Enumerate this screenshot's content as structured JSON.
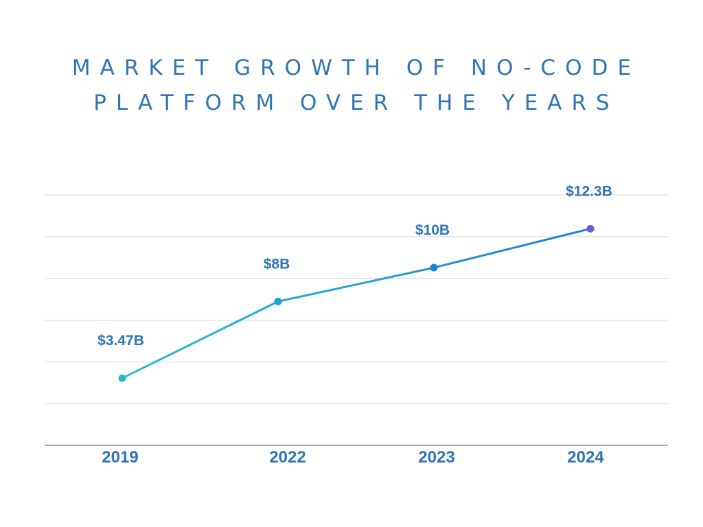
{
  "chart_data": {
    "type": "line",
    "title_lines": [
      "MARKET GROWTH OF NO-CODE",
      "PLATFORM OVER THE YEARS"
    ],
    "categories": [
      "2019",
      "2022",
      "2023",
      "2024"
    ],
    "values": [
      3.47,
      8,
      10,
      12.3
    ],
    "data_labels": [
      "$3.47B",
      "$8B",
      "$10B",
      "$12.3B"
    ],
    "point_colors": [
      "#22bcc9",
      "#1aa3db",
      "#1682dd",
      "#6a5bd6"
    ],
    "line_gradient": [
      "#23c1c8",
      "#1e7fd8"
    ],
    "ylim": [
      -0.5,
      14.3
    ],
    "grid": true,
    "legend": "none"
  }
}
